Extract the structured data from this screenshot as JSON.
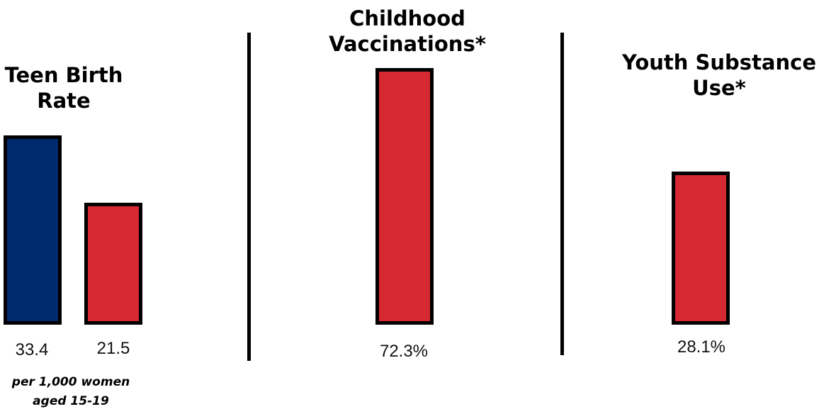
{
  "chart_data": [
    {
      "type": "bar",
      "title_line1": "Teen Birth",
      "title_line2": "Rate",
      "categories": [
        "",
        ""
      ],
      "values": [
        33.4,
        21.5
      ],
      "value_labels": [
        "33.4",
        "21.5"
      ],
      "bar_colors": [
        "#002a6e",
        "#d62932"
      ],
      "note_line1": "per 1,000 women",
      "note_line2": "aged 15-19",
      "ylim": [
        0,
        50
      ]
    },
    {
      "type": "bar",
      "title_line1": "Childhood",
      "title_line2": "Vaccinations*",
      "categories": [
        ""
      ],
      "values": [
        72.3
      ],
      "value_labels": [
        "72.3%"
      ],
      "bar_colors": [
        "#d62932"
      ],
      "ylim": [
        0,
        80
      ]
    },
    {
      "type": "bar",
      "title_line1": "Youth Substance",
      "title_line2": "Use*",
      "categories": [
        ""
      ],
      "values": [
        28.1
      ],
      "value_labels": [
        "28.1%"
      ],
      "bar_colors": [
        "#d62932"
      ],
      "ylim": [
        0,
        52
      ]
    }
  ]
}
